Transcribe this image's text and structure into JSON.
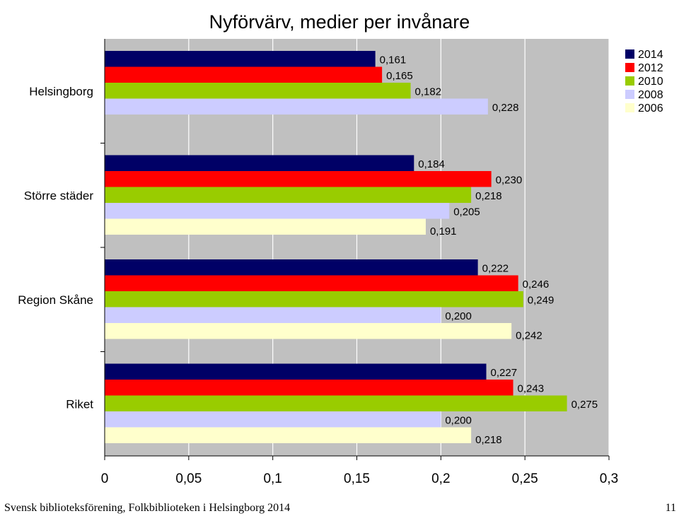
{
  "chart_data": {
    "type": "bar",
    "orientation": "horizontal",
    "title": "Nyförvärv, medier per invånare",
    "categories": [
      "Helsingborg",
      "Större städer",
      "Region Skåne",
      "Riket"
    ],
    "series": [
      {
        "name": "2014",
        "color": "#000066",
        "values": [
          0.161,
          0.184,
          0.222,
          0.227
        ],
        "labels": [
          "0,161",
          "0,184",
          "0,222",
          "0,227"
        ]
      },
      {
        "name": "2012",
        "color": "#FF0000",
        "values": [
          0.165,
          0.23,
          0.246,
          0.243
        ],
        "labels": [
          "0,165",
          "0,230",
          "0,246",
          "0,243"
        ]
      },
      {
        "name": "2010",
        "color": "#99CC00",
        "values": [
          0.182,
          0.218,
          0.249,
          0.275
        ],
        "labels": [
          "0,182",
          "0,218",
          "0,249",
          "0,275"
        ]
      },
      {
        "name": "2008",
        "color": "#CCCCFF",
        "values": [
          0.228,
          0.205,
          0.2,
          0.2
        ],
        "labels": [
          "0,228",
          "0,205",
          "0,200",
          "0,200"
        ]
      },
      {
        "name": "2006",
        "color": "#FFFFCC",
        "values": [
          null,
          0.191,
          0.242,
          0.218
        ],
        "labels": [
          "",
          "0,191",
          "0,242",
          "0,218"
        ]
      }
    ],
    "xlim": [
      0,
      0.3
    ],
    "xticks": [
      "0",
      "0,05",
      "0,1",
      "0,15",
      "0,2",
      "0,25",
      "0,3"
    ],
    "legend": "top-right",
    "grid": true
  },
  "footer": {
    "source": "Svensk biblioteksförening, Folkbiblioteken i Helsingborg 2014",
    "page": "11"
  }
}
